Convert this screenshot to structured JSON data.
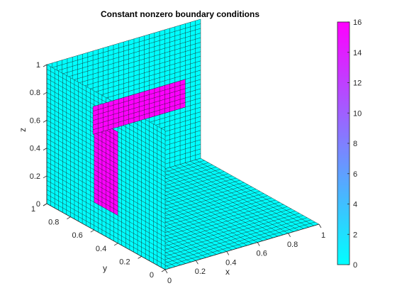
{
  "chart_data": {
    "type": "surface",
    "title": "Constant nonzero boundary conditions",
    "xlabel": "x",
    "ylabel": "y",
    "zlabel": "z",
    "xlim": [
      0,
      1
    ],
    "ylim": [
      0,
      1
    ],
    "zlim": [
      0,
      1
    ],
    "x_ticks": [
      "0",
      "0.2",
      "0.4",
      "0.6",
      "0.8",
      "1"
    ],
    "y_ticks": [
      "0",
      "0.2",
      "0.4",
      "0.6",
      "0.8",
      "1"
    ],
    "z_ticks": [
      "0",
      "0.2",
      "0.4",
      "0.6",
      "0.8",
      "1"
    ],
    "grid_cells": 30,
    "surface_value": 0,
    "faces": [
      {
        "name": "floor",
        "plane": "z",
        "at": 0
      },
      {
        "name": "back-wall",
        "plane": "y",
        "at": 1
      },
      {
        "name": "side-wall",
        "plane": "x",
        "at": 0
      }
    ],
    "hot_patches": [
      {
        "face": "side-wall",
        "value": 16,
        "y_range": [
          0.4,
          0.6
        ],
        "z_range": [
          0.2,
          0.8
        ]
      },
      {
        "face": "back-wall",
        "value": 16,
        "x_range": [
          0.3,
          0.9
        ],
        "z_range": [
          0.4,
          0.6
        ]
      }
    ],
    "colorbar": {
      "min": 0,
      "max": 16,
      "ticks": [
        "0",
        "2",
        "4",
        "6",
        "8",
        "10",
        "12",
        "14",
        "16"
      ],
      "color_low": "#00ffff",
      "color_high": "#ff00ff"
    },
    "edge_color": "#1a1a1a"
  }
}
